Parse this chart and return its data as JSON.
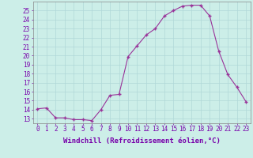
{
  "x": [
    0,
    1,
    2,
    3,
    4,
    5,
    6,
    7,
    8,
    9,
    10,
    11,
    12,
    13,
    14,
    15,
    16,
    17,
    18,
    19,
    20,
    21,
    22,
    23
  ],
  "y": [
    14.1,
    14.2,
    13.1,
    13.1,
    12.9,
    12.9,
    12.8,
    14.0,
    15.6,
    15.7,
    19.9,
    21.1,
    22.3,
    23.0,
    24.4,
    25.0,
    25.5,
    25.6,
    25.6,
    24.4,
    20.5,
    17.9,
    16.5,
    14.9
  ],
  "line_color": "#993399",
  "marker": "+",
  "marker_size": 3.5,
  "linewidth": 0.8,
  "xlim": [
    -0.5,
    23.5
  ],
  "ylim": [
    12.5,
    26.0
  ],
  "yticks": [
    13,
    14,
    15,
    16,
    17,
    18,
    19,
    20,
    21,
    22,
    23,
    24,
    25
  ],
  "xticks": [
    0,
    1,
    2,
    3,
    4,
    5,
    6,
    7,
    8,
    9,
    10,
    11,
    12,
    13,
    14,
    15,
    16,
    17,
    18,
    19,
    20,
    21,
    22,
    23
  ],
  "xlabel": "Windchill (Refroidissement éolien,°C)",
  "xlabel_fontsize": 6.5,
  "tick_fontsize": 5.5,
  "grid_color": "#b0d8d8",
  "background_color": "#cceee8",
  "line_color_axis": "#888888",
  "tick_color": "#7700aa"
}
